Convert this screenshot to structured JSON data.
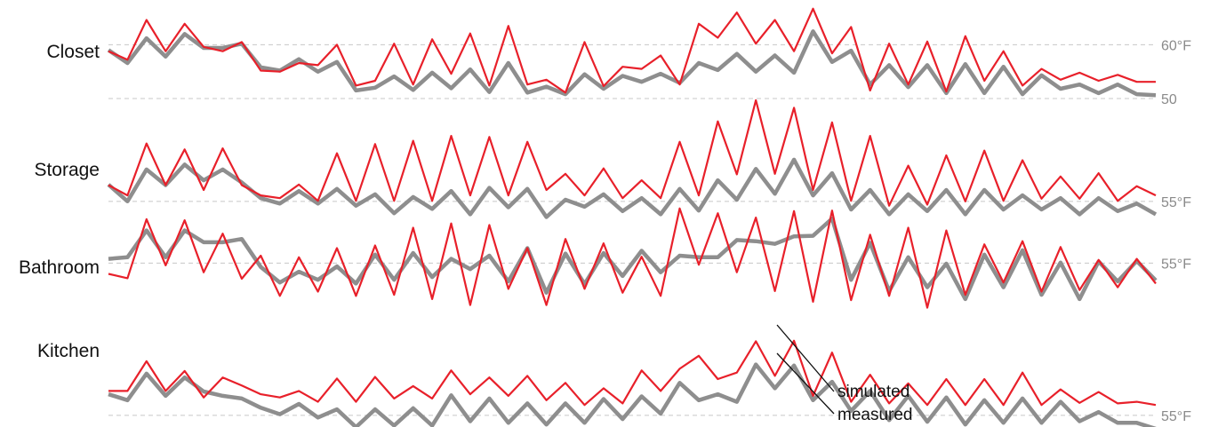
{
  "chart_data": {
    "type": "line",
    "title": "",
    "xlabel": "",
    "ylabel": "",
    "grid": false,
    "colors": {
      "simulated": "#e8202a",
      "measured": "#8e8e8e",
      "reference": "#c8c8c8"
    },
    "annotations": [
      "simulated",
      "measured"
    ],
    "panels": [
      {
        "label": "Closet",
        "ticks": [
          {
            "label": "60°F",
            "value": 60
          },
          {
            "label": "50",
            "value": 50
          }
        ],
        "ylim": [
          49,
          67
        ],
        "series": [
          {
            "name": "simulated",
            "values": [
              58.8,
              57.2,
              64.6,
              58.8,
              63.9,
              59.6,
              58.8,
              60.5,
              55.2,
              55.0,
              56.6,
              56.2,
              60.0,
              52.4,
              53.3,
              60.2,
              52.6,
              61.0,
              54.6,
              62.1,
              52.4,
              63.5,
              52.6,
              53.5,
              51.1,
              60.5,
              52.3,
              55.9,
              55.5,
              58.0,
              52.6,
              63.9,
              61.3,
              66.0,
              60.2,
              64.6,
              58.8,
              66.7,
              58.4,
              63.3,
              51.5,
              60.2,
              52.6,
              60.6,
              51.3,
              61.6,
              53.3,
              58.8,
              52.4,
              55.5,
              53.5,
              54.8,
              53.3,
              54.4,
              53.1,
              53.1
            ]
          },
          {
            "name": "measured",
            "values": [
              59.0,
              56.6,
              61.2,
              57.8,
              62.0,
              59.4,
              59.4,
              60.2,
              55.8,
              55.2,
              57.3,
              55.0,
              56.8,
              51.5,
              52.0,
              54.1,
              51.6,
              54.8,
              51.9,
              55.4,
              51.2,
              56.6,
              51.1,
              52.2,
              50.8,
              54.5,
              51.8,
              54.2,
              53.1,
              54.6,
              52.9,
              56.6,
              55.3,
              58.3,
              55.0,
              58.0,
              54.8,
              62.5,
              56.8,
              58.9,
              52.6,
              56.2,
              52.1,
              56.2,
              51.0,
              56.4,
              51.0,
              55.9,
              50.8,
              54.3,
              51.8,
              52.6,
              51.0,
              52.6,
              50.8,
              50.6
            ]
          }
        ]
      },
      {
        "label": "Storage",
        "ticks": [
          {
            "label": "55°F",
            "value": 55
          }
        ],
        "ylim": [
          53,
          75
        ],
        "series": [
          {
            "name": "simulated",
            "values": [
              58.0,
              56.1,
              65.7,
              58.0,
              64.6,
              57.1,
              64.8,
              58.0,
              56.1,
              55.6,
              58.1,
              55.1,
              63.9,
              55.1,
              65.6,
              55.1,
              66.2,
              55.1,
              67.1,
              56.1,
              66.9,
              56.1,
              66.0,
              57.1,
              60.1,
              56.1,
              61.1,
              55.6,
              58.9,
              55.6,
              66.0,
              56.1,
              69.8,
              60.0,
              73.7,
              60.1,
              72.3,
              57.1,
              69.6,
              55.1,
              67.1,
              54.2,
              61.6,
              54.4,
              63.5,
              55.0,
              64.4,
              55.1,
              62.6,
              55.5,
              59.6,
              55.5,
              60.2,
              55.1,
              57.8,
              56.1
            ]
          },
          {
            "name": "measured",
            "values": [
              58.1,
              55.0,
              60.9,
              58.0,
              61.8,
              58.9,
              60.9,
              58.5,
              55.6,
              54.6,
              56.9,
              54.6,
              57.3,
              54.2,
              56.3,
              52.8,
              55.8,
              53.6,
              56.9,
              52.6,
              57.5,
              53.9,
              57.3,
              52.1,
              55.3,
              54.0,
              56.3,
              53.2,
              55.6,
              52.6,
              57.3,
              53.3,
              58.9,
              55.3,
              61.0,
              56.4,
              62.7,
              56.1,
              60.2,
              53.5,
              57.1,
              52.6,
              56.3,
              53.2,
              57.1,
              52.6,
              57.1,
              53.5,
              56.1,
              53.5,
              55.6,
              52.6,
              55.6,
              53.2,
              54.6,
              52.6
            ]
          }
        ]
      },
      {
        "label": "Bathroom",
        "ticks": [
          {
            "label": "55°F",
            "value": 55
          }
        ],
        "ylim": [
          42,
          65
        ],
        "series": [
          {
            "name": "simulated",
            "values": [
              53.0,
              52.2,
              63.2,
              54.6,
              63.0,
              53.3,
              60.5,
              52.1,
              56.4,
              48.9,
              56.1,
              49.7,
              57.8,
              48.9,
              58.3,
              49.1,
              61.6,
              48.3,
              62.4,
              47.2,
              62.1,
              50.2,
              57.8,
              47.2,
              59.5,
              50.2,
              58.7,
              49.5,
              56.2,
              48.9,
              65.2,
              54.7,
              64.3,
              53.3,
              63.5,
              49.8,
              64.7,
              47.8,
              64.8,
              48.1,
              60.3,
              48.9,
              61.6,
              46.7,
              61.1,
              49.1,
              58.5,
              51.4,
              59.1,
              49.7,
              58.0,
              50.0,
              55.6,
              50.5,
              55.8,
              51.2
            ]
          },
          {
            "name": "measured",
            "values": [
              55.8,
              56.1,
              61.1,
              56.1,
              61.1,
              58.9,
              58.9,
              59.5,
              54.3,
              51.4,
              53.4,
              51.9,
              54.4,
              51.2,
              56.6,
              51.9,
              56.9,
              52.4,
              55.8,
              53.9,
              56.4,
              51.6,
              57.8,
              49.5,
              56.8,
              51.1,
              56.9,
              52.6,
              57.3,
              53.3,
              56.4,
              56.1,
              56.1,
              59.3,
              59.1,
              58.6,
              60.0,
              60.1,
              63.3,
              51.9,
              58.8,
              49.8,
              56.1,
              50.5,
              54.9,
              48.3,
              56.6,
              50.5,
              57.4,
              49.1,
              55.1,
              48.3,
              55.3,
              51.6,
              55.4,
              51.8
            ]
          }
        ]
      },
      {
        "label": "Kitchen",
        "ticks": [
          {
            "label": "55°F",
            "value": 55
          }
        ],
        "ylim": [
          53,
          75
        ],
        "series": [
          {
            "name": "simulated",
            "values": [
              59.5,
              59.5,
              65.0,
              59.5,
              63.2,
              58.3,
              62.0,
              60.5,
              58.9,
              58.3,
              59.5,
              57.5,
              61.8,
              57.5,
              62.1,
              58.1,
              60.4,
              58.1,
              63.3,
              58.9,
              62.0,
              58.6,
              62.3,
              57.8,
              61.0,
              56.9,
              60.0,
              57.2,
              63.3,
              59.5,
              63.6,
              66.0,
              61.7,
              62.9,
              68.7,
              62.3,
              68.8,
              58.6,
              66.6,
              57.5,
              62.5,
              57.2,
              60.9,
              56.9,
              61.7,
              56.9,
              61.7,
              56.9,
              62.9,
              56.9,
              59.8,
              57.3,
              59.3,
              57.2,
              57.5,
              56.9
            ]
          },
          {
            "name": "measured",
            "values": [
              58.9,
              57.8,
              62.7,
              58.6,
              62.0,
              59.4,
              58.6,
              58.1,
              56.4,
              55.2,
              57.1,
              54.6,
              56.1,
              52.8,
              56.1,
              53.1,
              56.3,
              53.1,
              58.7,
              53.9,
              58.1,
              53.6,
              57.2,
              53.3,
              57.2,
              53.6,
              58.0,
              54.3,
              58.5,
              55.3,
              61.0,
              57.8,
              58.9,
              57.5,
              64.4,
              60.0,
              64.2,
              57.8,
              61.2,
              55.8,
              59.5,
              54.1,
              58.6,
              53.8,
              58.3,
              53.3,
              57.8,
              53.6,
              58.1,
              53.6,
              57.5,
              53.9,
              55.6,
              53.6,
              53.6,
              52.5
            ]
          }
        ]
      }
    ]
  }
}
